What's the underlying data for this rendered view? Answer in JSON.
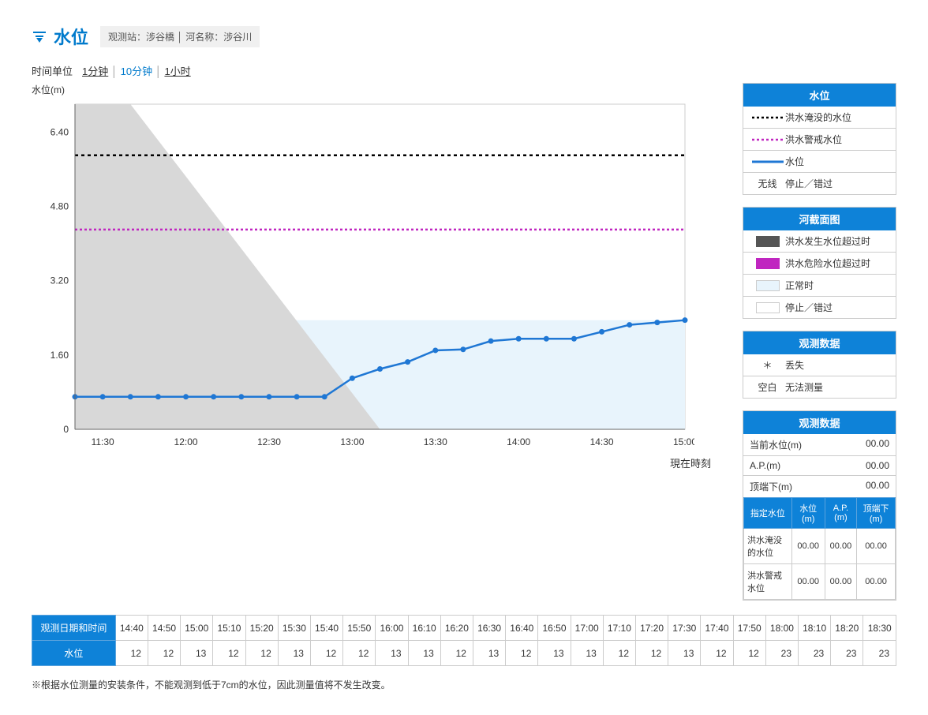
{
  "header": {
    "title": "水位",
    "station_label": "观测站：涉谷橋",
    "river_label": "河名称：涉谷川"
  },
  "time_unit": {
    "label": "时间单位",
    "options": [
      "1分钟",
      "10分钟",
      "1小时"
    ],
    "active_index": 1
  },
  "chart": {
    "y_label": "水位(m)",
    "y_min": 0,
    "y_max": 7.0,
    "y_ticks": [
      0,
      1.6,
      3.2,
      4.8,
      6.4
    ],
    "x_labels": [
      "11:30",
      "12:00",
      "12:30",
      "13:00",
      "13:30",
      "14:00",
      "14:30",
      "15:00"
    ],
    "x_positions": [
      1,
      4,
      7,
      10,
      13,
      16,
      19,
      22
    ],
    "x_count": 23,
    "flood_level": 5.9,
    "warning_level": 4.3,
    "fill_level": 2.35,
    "grey_band_end": 2.0,
    "grey_band_bottom": 11.0,
    "values": [
      0.7,
      0.7,
      0.7,
      0.7,
      0.7,
      0.7,
      0.7,
      0.7,
      0.7,
      0.7,
      1.1,
      1.3,
      1.45,
      1.7,
      1.72,
      1.9,
      1.95,
      1.95,
      1.95,
      2.1,
      2.25,
      2.3,
      2.35
    ],
    "colors": {
      "line": "#1f77d4",
      "flood_line": "#000000",
      "warning_line": "#c026c0",
      "fill": "#e8f4fc",
      "grey": "#d8d8d8",
      "axis": "#666666",
      "border": "#cccccc"
    },
    "x_now_label": "現在時刻"
  },
  "legend1": {
    "header": "水位",
    "rows": [
      {
        "type": "dotted_black",
        "text": "洪水淹没的水位"
      },
      {
        "type": "dotted_mag",
        "text": "洪水警戒水位"
      },
      {
        "type": "solid_blue",
        "text": "水位"
      },
      {
        "type": "text_only",
        "mark": "无线",
        "text": "停止／错过"
      }
    ]
  },
  "legend2": {
    "header": "河截面图",
    "rows": [
      {
        "swatch": "dark",
        "text": "洪水发生水位超过时"
      },
      {
        "swatch": "mag",
        "text": "洪水危险水位超过时"
      },
      {
        "swatch": "light",
        "text": "正常时"
      },
      {
        "swatch": "white",
        "text": "停止／错过"
      }
    ]
  },
  "obs1": {
    "header": "观测数据",
    "rows": [
      {
        "mark": "＊",
        "text": "丢失"
      },
      {
        "mark": "空白",
        "text": "无法测量"
      }
    ]
  },
  "obs2": {
    "header": "观测数据",
    "current": [
      {
        "label": "当前水位(m)",
        "val": "00.00"
      },
      {
        "label": "A.P.(m)",
        "val": "00.00"
      },
      {
        "label": "顶端下(m)",
        "val": "00.00"
      }
    ],
    "table": {
      "headers": [
        "指定水位",
        "水位(m)",
        "A.P.(m)",
        "顶端下(m)"
      ],
      "rows": [
        {
          "label": "洪水淹没的水位",
          "vals": [
            "00.00",
            "00.00",
            "00.00"
          ]
        },
        {
          "label": "洪水警戒水位",
          "vals": [
            "00.00",
            "00.00",
            "00.00"
          ]
        }
      ]
    }
  },
  "bottom_table": {
    "row1_header": "观测日期和时间",
    "row2_header": "水位",
    "times": [
      "14:40",
      "14:50",
      "15:00",
      "15:10",
      "15:20",
      "15:30",
      "15:40",
      "15:50",
      "16:00",
      "16:10",
      "16:20",
      "16:30",
      "16:40",
      "16:50",
      "17:00",
      "17:10",
      "17:20",
      "17:30",
      "17:40",
      "17:50",
      "18:00",
      "18:10",
      "18:20",
      "18:30"
    ],
    "values": [
      12,
      12,
      13,
      12,
      12,
      13,
      12,
      12,
      13,
      13,
      12,
      13,
      12,
      13,
      13,
      12,
      12,
      13,
      12,
      12,
      23,
      23,
      23,
      23
    ]
  },
  "footnote": "※根据水位测量的安装条件，不能观测到低于7cm的水位，因此测量值将不发生改变。"
}
